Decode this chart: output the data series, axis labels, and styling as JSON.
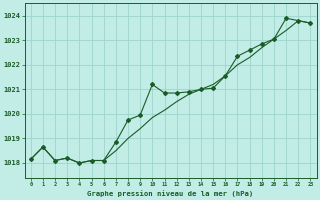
{
  "title": "Graphe pression niveau de la mer (hPa)",
  "background_color": "#c2ece6",
  "grid_color": "#9ed4cc",
  "line_color": "#1a5c28",
  "xlim": [
    -0.5,
    23.5
  ],
  "ylim": [
    1017.4,
    1024.5
  ],
  "yticks": [
    1018,
    1019,
    1020,
    1021,
    1022,
    1023,
    1024
  ],
  "xticks": [
    0,
    1,
    2,
    3,
    4,
    5,
    6,
    7,
    8,
    9,
    10,
    11,
    12,
    13,
    14,
    15,
    16,
    17,
    18,
    19,
    20,
    21,
    22,
    23
  ],
  "data_line": {
    "x": [
      0,
      1,
      2,
      3,
      4,
      5,
      6,
      7,
      8,
      9,
      10,
      11,
      12,
      13,
      14,
      15,
      16,
      17,
      18,
      19,
      20,
      21,
      22,
      23
    ],
    "y": [
      1018.15,
      1018.65,
      1018.1,
      1018.2,
      1018.0,
      1018.1,
      1018.1,
      1018.85,
      1019.75,
      1019.95,
      1021.2,
      1020.85,
      1020.85,
      1020.9,
      1021.0,
      1021.05,
      1021.55,
      1022.35,
      1022.6,
      1022.85,
      1023.05,
      1023.9,
      1023.8,
      1023.7
    ]
  },
  "trend_line": {
    "x": [
      0,
      1,
      2,
      3,
      4,
      5,
      6,
      7,
      8,
      9,
      10,
      11,
      12,
      13,
      14,
      15,
      16,
      17,
      18,
      19,
      20,
      21,
      22,
      23
    ],
    "y": [
      1018.15,
      1018.65,
      1018.1,
      1018.2,
      1018.0,
      1018.1,
      1018.1,
      1018.5,
      1019.0,
      1019.4,
      1019.85,
      1020.15,
      1020.5,
      1020.8,
      1021.0,
      1021.2,
      1021.55,
      1022.0,
      1022.3,
      1022.7,
      1023.05,
      1023.4,
      1023.8,
      1023.7
    ]
  }
}
